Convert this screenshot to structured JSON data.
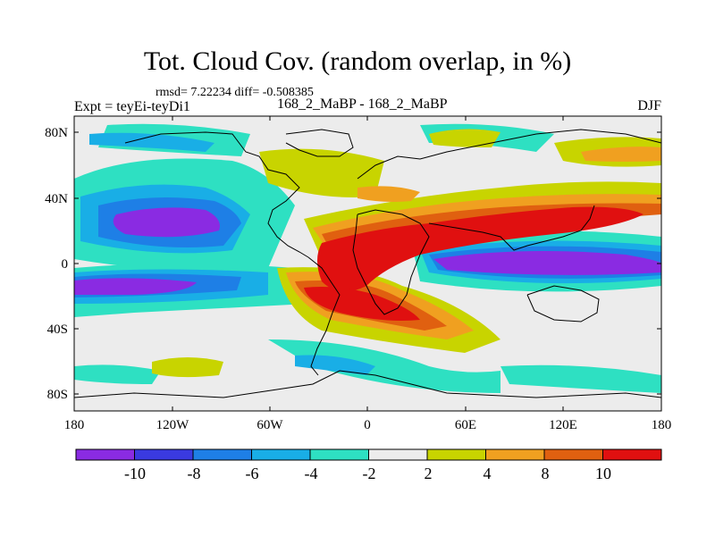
{
  "title": "Tot. Cloud Cov. (random overlap, in %)",
  "stats": "rmsd= 7.22234 diff= -0.508385",
  "experiment": "Expt = teyEi-teyDi1",
  "period": "168_2_MaBP - 168_2_MaBP",
  "season": "DJF",
  "lat_labels": [
    "80N",
    "40N",
    "0",
    "40S",
    "80S"
  ],
  "lon_labels": [
    "180",
    "120W",
    "60W",
    "0",
    "60E",
    "120E",
    "180"
  ],
  "colorbar": {
    "labels": [
      "-10",
      "-8",
      "-6",
      "-4",
      "-2",
      "2",
      "4",
      "8",
      "10"
    ],
    "colors": [
      "#8a2be2",
      "#3a3ae0",
      "#1e7fe6",
      "#19aee6",
      "#2ee0c2",
      "#ececec",
      "#c8d400",
      "#f0a020",
      "#e06010",
      "#e01010"
    ]
  },
  "background_color": "#ececec"
}
